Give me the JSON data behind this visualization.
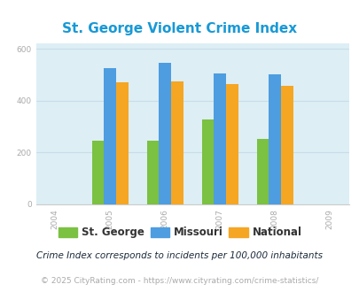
{
  "title": "St. George Violent Crime Index",
  "title_color": "#1899d6",
  "years": [
    2005,
    2006,
    2007,
    2008
  ],
  "x_ticks": [
    2004,
    2005,
    2006,
    2007,
    2008,
    2009
  ],
  "stgeorge": [
    245,
    245,
    328,
    252
  ],
  "missouri": [
    525,
    548,
    505,
    503
  ],
  "national": [
    470,
    475,
    465,
    458
  ],
  "color_stgeorge": "#7bc142",
  "color_missouri": "#4d9de0",
  "color_national": "#f5a623",
  "ylim": [
    0,
    620
  ],
  "yticks": [
    0,
    200,
    400,
    600
  ],
  "plot_bg": "#ddeef5",
  "legend_labels": [
    "St. George",
    "Missouri",
    "National"
  ],
  "footnote1": "Crime Index corresponds to incidents per 100,000 inhabitants",
  "footnote2": "© 2025 CityRating.com - https://www.cityrating.com/crime-statistics/",
  "bar_width": 0.22,
  "figsize": [
    4.06,
    3.3
  ],
  "dpi": 100
}
